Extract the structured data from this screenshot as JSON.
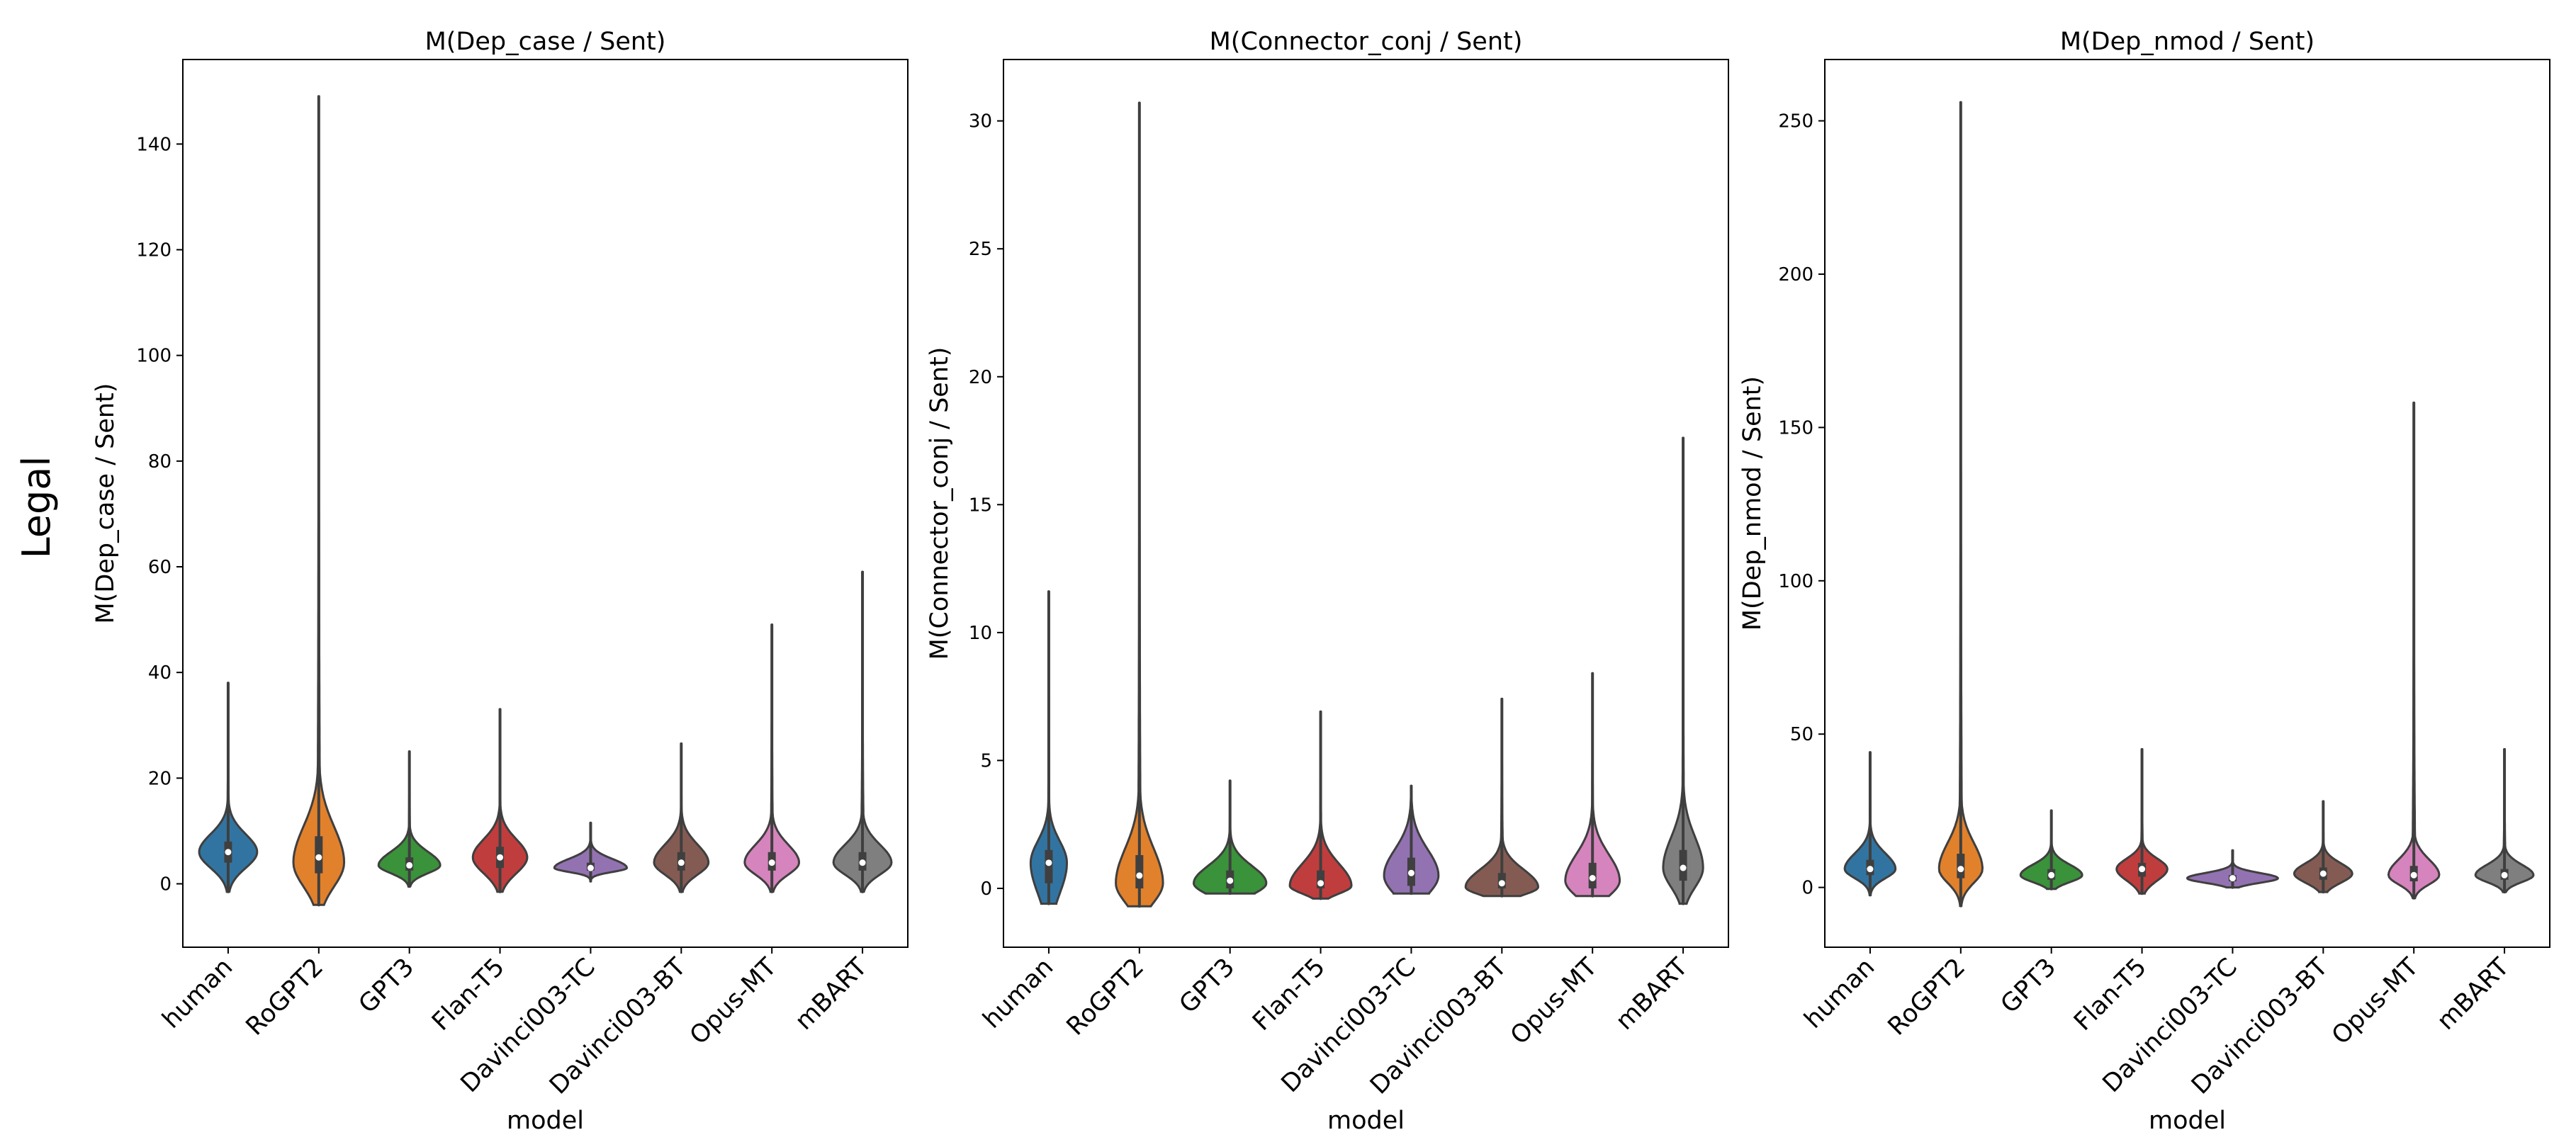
{
  "row_label": "Legal",
  "chart_data": [
    {
      "type": "violin",
      "title": "M(Dep_case / Sent)",
      "xlabel": "model",
      "ylabel": "M(Dep_case / Sent)",
      "ylim": [
        -12,
        156
      ],
      "yticks": [
        0,
        20,
        40,
        60,
        80,
        100,
        120,
        140
      ],
      "categories": [
        "human",
        "RoGPT2",
        "GPT3",
        "Flan-T5",
        "Davinci003-TC",
        "Davinci003-BT",
        "Opus-MT",
        "mBART"
      ],
      "colors": [
        "#3274a1",
        "#e1812c",
        "#3a923a",
        "#c03d3e",
        "#9372b2",
        "#845b53",
        "#d684bd",
        "#7f7f7f"
      ],
      "series": [
        {
          "name": "human",
          "min": -1.5,
          "q1": 4,
          "median": 6,
          "q3": 8,
          "max": 38,
          "mode": 6,
          "halfwidth": 0.32
        },
        {
          "name": "RoGPT2",
          "min": -4,
          "q1": 2,
          "median": 5,
          "q3": 9,
          "max": 149,
          "mode": 4,
          "halfwidth": 0.28
        },
        {
          "name": "GPT3",
          "min": -0.5,
          "q1": 2.5,
          "median": 3.5,
          "q3": 5,
          "max": 25,
          "mode": 3.5,
          "halfwidth": 0.34
        },
        {
          "name": "Flan-T5",
          "min": -1.5,
          "q1": 3,
          "median": 5,
          "q3": 7,
          "max": 33,
          "mode": 5,
          "halfwidth": 0.3
        },
        {
          "name": "Davinci003-TC",
          "min": 0.5,
          "q1": 2.5,
          "median": 3,
          "q3": 4,
          "max": 11.5,
          "mode": 3,
          "halfwidth": 0.4
        },
        {
          "name": "Davinci003-BT",
          "min": -1.5,
          "q1": 2.5,
          "median": 4,
          "q3": 6,
          "max": 26.5,
          "mode": 4,
          "halfwidth": 0.3
        },
        {
          "name": "Opus-MT",
          "min": -1.5,
          "q1": 2.5,
          "median": 4,
          "q3": 6,
          "max": 49,
          "mode": 4,
          "halfwidth": 0.3
        },
        {
          "name": "mBART",
          "min": -1.5,
          "q1": 2.5,
          "median": 4,
          "q3": 6,
          "max": 59,
          "mode": 4,
          "halfwidth": 0.32
        }
      ]
    },
    {
      "type": "violin",
      "title": "M(Connector_conj / Sent)",
      "xlabel": "model",
      "ylabel": "M(Connector_conj / Sent)",
      "ylim": [
        -2.3,
        32.4
      ],
      "yticks": [
        0,
        5,
        10,
        15,
        20,
        25,
        30
      ],
      "categories": [
        "human",
        "RoGPT2",
        "GPT3",
        "Flan-T5",
        "Davinci003-TC",
        "Davinci003-BT",
        "Opus-MT",
        "mBART"
      ],
      "colors": [
        "#3274a1",
        "#e1812c",
        "#3a923a",
        "#c03d3e",
        "#9372b2",
        "#845b53",
        "#d684bd",
        "#7f7f7f"
      ],
      "series": [
        {
          "name": "human",
          "min": -0.6,
          "q1": 0.2,
          "median": 1,
          "q3": 1.5,
          "max": 11.6,
          "mode": 1,
          "halfwidth": 0.2
        },
        {
          "name": "RoGPT2",
          "min": -0.7,
          "q1": 0,
          "median": 0.5,
          "q3": 1.3,
          "max": 30.7,
          "mode": 0.2,
          "halfwidth": 0.26
        },
        {
          "name": "GPT3",
          "min": -0.2,
          "q1": 0,
          "median": 0.3,
          "q3": 0.7,
          "max": 4.2,
          "mode": 0.2,
          "halfwidth": 0.4
        },
        {
          "name": "Flan-T5",
          "min": -0.4,
          "q1": 0,
          "median": 0.2,
          "q3": 0.7,
          "max": 6.9,
          "mode": 0.1,
          "halfwidth": 0.34
        },
        {
          "name": "Davinci003-TC",
          "min": -0.2,
          "q1": 0.1,
          "median": 0.6,
          "q3": 1.2,
          "max": 4,
          "mode": 0.5,
          "halfwidth": 0.3
        },
        {
          "name": "Davinci003-BT",
          "min": -0.3,
          "q1": 0,
          "median": 0.2,
          "q3": 0.6,
          "max": 7.4,
          "mode": 0.05,
          "halfwidth": 0.4
        },
        {
          "name": "Opus-MT",
          "min": -0.3,
          "q1": 0,
          "median": 0.4,
          "q3": 1,
          "max": 8.4,
          "mode": 0.3,
          "halfwidth": 0.3
        },
        {
          "name": "mBART",
          "min": -0.6,
          "q1": 0.3,
          "median": 0.8,
          "q3": 1.5,
          "max": 17.6,
          "mode": 0.8,
          "halfwidth": 0.22
        }
      ]
    },
    {
      "type": "violin",
      "title": "M(Dep_nmod / Sent)",
      "xlabel": "model",
      "ylabel": "M(Dep_nmod / Sent)",
      "ylim": [
        -19.5,
        270
      ],
      "yticks": [
        0,
        50,
        100,
        150,
        200,
        250
      ],
      "categories": [
        "human",
        "RoGPT2",
        "GPT3",
        "Flan-T5",
        "Davinci003-TC",
        "Davinci003-BT",
        "Opus-MT",
        "mBART"
      ],
      "colors": [
        "#3274a1",
        "#e1812c",
        "#3a923a",
        "#c03d3e",
        "#9372b2",
        "#845b53",
        "#d684bd",
        "#7f7f7f"
      ],
      "series": [
        {
          "name": "human",
          "min": -2.5,
          "q1": 4,
          "median": 6,
          "q3": 9,
          "max": 44,
          "mode": 6,
          "halfwidth": 0.28
        },
        {
          "name": "RoGPT2",
          "min": -6,
          "q1": 3,
          "median": 6,
          "q3": 11,
          "max": 256,
          "mode": 6,
          "halfwidth": 0.24
        },
        {
          "name": "GPT3",
          "min": -0.5,
          "q1": 2.5,
          "median": 4,
          "q3": 6,
          "max": 25,
          "mode": 4,
          "halfwidth": 0.34
        },
        {
          "name": "Flan-T5",
          "min": -2,
          "q1": 3.5,
          "median": 6,
          "q3": 8,
          "max": 45,
          "mode": 6,
          "halfwidth": 0.28
        },
        {
          "name": "Davinci003-TC",
          "min": 0,
          "q1": 2,
          "median": 3,
          "q3": 4,
          "max": 12,
          "mode": 3,
          "halfwidth": 0.5
        },
        {
          "name": "Davinci003-BT",
          "min": -1.5,
          "q1": 2.5,
          "median": 4.5,
          "q3": 6.5,
          "max": 28,
          "mode": 4.5,
          "halfwidth": 0.32
        },
        {
          "name": "Opus-MT",
          "min": -3.5,
          "q1": 2,
          "median": 4,
          "q3": 7,
          "max": 158,
          "mode": 4,
          "halfwidth": 0.28
        },
        {
          "name": "mBART",
          "min": -1.5,
          "q1": 2.5,
          "median": 4,
          "q3": 6,
          "max": 45,
          "mode": 4,
          "halfwidth": 0.32
        }
      ]
    }
  ]
}
